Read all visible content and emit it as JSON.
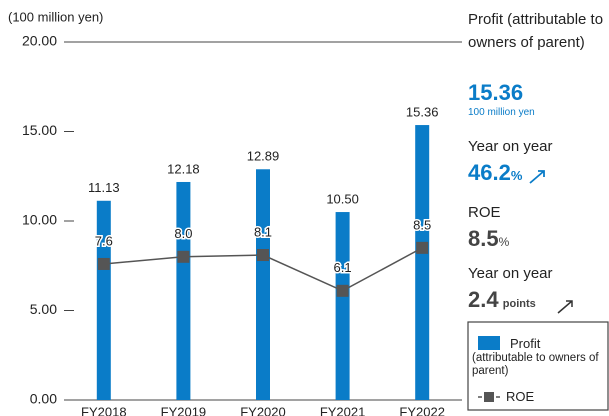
{
  "chart_data": {
    "type": "bar_line",
    "y_axis_label": "(100 million yen)",
    "categories": [
      "FY2018",
      "FY2019",
      "FY2020",
      "FY2021",
      "FY2022"
    ],
    "series": [
      {
        "name": "Profit",
        "legend_note": "(attributable to owners of parent)",
        "color": "#0a7cc8",
        "type": "bar",
        "values": [
          11.13,
          12.18,
          12.89,
          10.5,
          15.36
        ],
        "value_labels": [
          "11.13",
          "12.18",
          "12.89",
          "10.50",
          "15.36"
        ]
      },
      {
        "name": "ROE",
        "color": "#555555",
        "type": "line",
        "values": [
          7.6,
          8.0,
          8.1,
          6.1,
          8.5
        ],
        "value_labels": [
          "7.6",
          "8.0",
          "8.1",
          "6.1",
          "8.5"
        ]
      }
    ],
    "ylim": [
      0,
      20
    ],
    "yticks": [
      {
        "value": 0,
        "label": "0.00"
      },
      {
        "value": 5,
        "label": "5.00"
      },
      {
        "value": 10,
        "label": "10.00"
      },
      {
        "value": 15,
        "label": "15.00"
      },
      {
        "value": 20,
        "label": "20.00"
      }
    ]
  },
  "panel": {
    "profit_label": "Profit (attributable to owners of parent)",
    "profit_value": "15.36",
    "profit_unit": "100 million yen",
    "yoy_label": "Year on year",
    "yoy_value": "46.2",
    "yoy_unit": "%",
    "roe_label": "ROE",
    "roe_value": "8.5",
    "roe_unit": "%",
    "roe_yoy_label": "Year on year",
    "roe_yoy_value": "2.4",
    "roe_yoy_unit": "points"
  }
}
